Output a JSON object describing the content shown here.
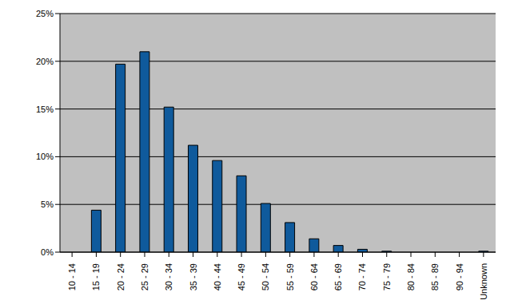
{
  "chart_data": {
    "type": "bar",
    "categories": [
      "10 - 14",
      "15 - 19",
      "20 - 24",
      "25 - 29",
      "30 - 34",
      "35 - 39",
      "40 - 44",
      "45 - 49",
      "50 - 54",
      "55 - 59",
      "60 - 64",
      "65 - 69",
      "70 - 74",
      "75 - 79",
      "80 - 84",
      "85 - 89",
      "90 - 94",
      "Unknown"
    ],
    "values": [
      0,
      4.4,
      19.7,
      21.0,
      15.2,
      11.2,
      9.6,
      8.0,
      5.1,
      3.1,
      1.4,
      0.7,
      0.3,
      0.1,
      0,
      0,
      0,
      0.1
    ],
    "color": "#0f5a9c",
    "ylim": [
      0,
      25
    ],
    "yticks": [
      {
        "value": 0,
        "label": "0%"
      },
      {
        "value": 5,
        "label": "5%"
      },
      {
        "value": 10,
        "label": "10%"
      },
      {
        "value": 15,
        "label": "15%"
      },
      {
        "value": 20,
        "label": "20%"
      },
      {
        "value": 25,
        "label": "25%"
      }
    ],
    "grid": true
  }
}
